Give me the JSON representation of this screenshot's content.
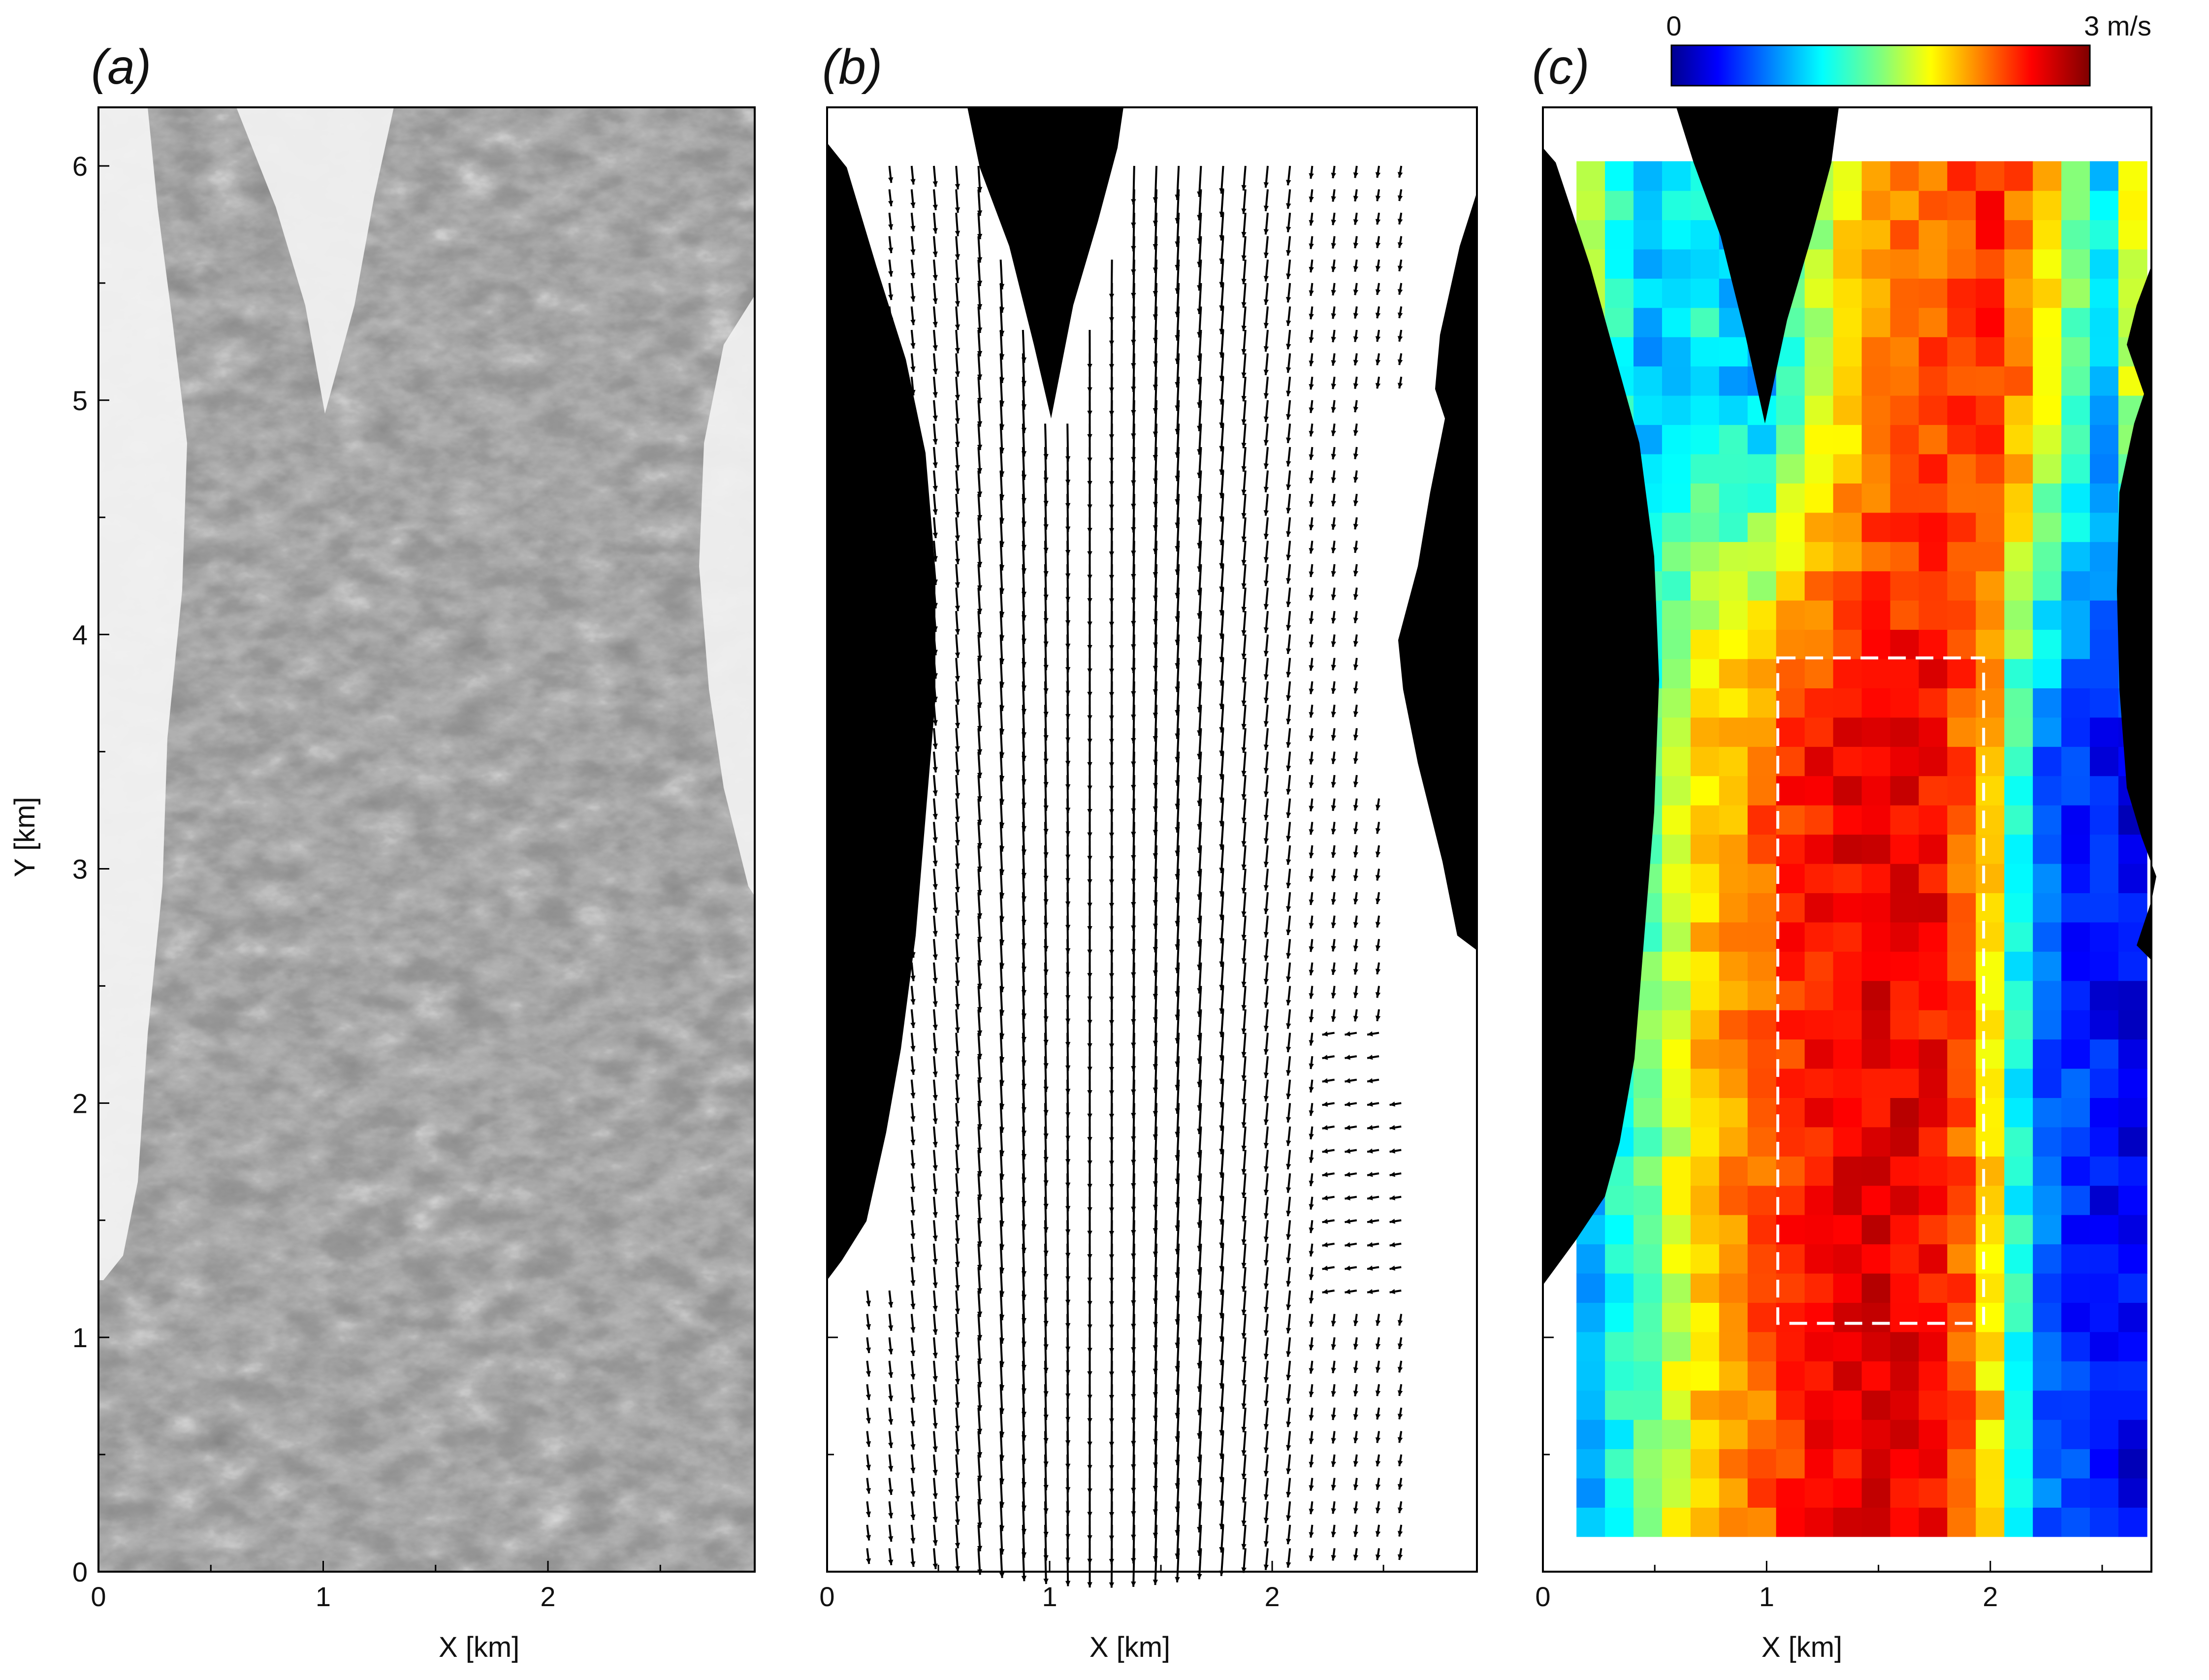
{
  "figure": {
    "panels": [
      {
        "id": "a",
        "label": "(a)",
        "xlabel": "X [km]",
        "ylabel": "Y [km]",
        "type": "image"
      },
      {
        "id": "b",
        "label": "(b)",
        "xlabel": "X [km]",
        "ylabel": "",
        "type": "vector-field"
      },
      {
        "id": "c",
        "label": "(c)",
        "xlabel": "X [km]",
        "ylabel": "",
        "type": "heatmap"
      }
    ],
    "colorbar": {
      "min_label": "0",
      "max_label": "3 m/s",
      "vmin": 0,
      "vmax": 3,
      "colormap": "jet"
    }
  },
  "chart_data": [
    {
      "type": "image",
      "panel": "a",
      "title": "(a)",
      "xlabel": "X [km]",
      "ylabel": "Y [km]",
      "xlim": [
        0,
        2.92
      ],
      "ylim": [
        0,
        6.25
      ],
      "xticks": [
        0,
        1,
        2
      ],
      "yticks": [
        0,
        1,
        2,
        3,
        4,
        5,
        6
      ],
      "image": "grayscale sea-surface image of a tidal channel",
      "colors": {
        "land": "#f2f2f2",
        "water": "#5a5a5a",
        "foam": "#e6e6e6"
      }
    },
    {
      "type": "vector-field",
      "panel": "b",
      "title": "(b)",
      "xlabel": "X [km]",
      "xlim": [
        0,
        2.92
      ],
      "ylim": [
        0,
        6.25
      ],
      "xticks": [
        0,
        1,
        2
      ],
      "yticks": [
        0,
        1,
        2,
        3,
        4,
        5,
        6
      ],
      "flow_direction": "southward",
      "vector_color": "#000000",
      "land_color": "#000000",
      "grid": {
        "x_start": 0.18,
        "dx": 0.1,
        "nx": 25,
        "y_start": 0.1,
        "dy": 0.1,
        "ny": 60
      }
    },
    {
      "type": "heatmap",
      "panel": "c",
      "title": "(c)",
      "xlabel": "X [km]",
      "xlim": [
        0,
        2.72
      ],
      "ylim": [
        0,
        6.25
      ],
      "xticks": [
        0,
        1,
        2
      ],
      "yticks": [
        0,
        1,
        2,
        3,
        4,
        5,
        6
      ],
      "colorbar": {
        "range": [
          0,
          3
        ],
        "unit": "m/s",
        "colormap": "jet"
      },
      "cell_grid": {
        "x_start": 0.15,
        "x_end": 2.7,
        "y_start": 0.15,
        "y_end": 6.02,
        "nx": 20,
        "ny": 47
      },
      "speed_profile_x_km": [
        0.15,
        0.45,
        0.7,
        0.95,
        1.2,
        1.5,
        1.8,
        2.0,
        2.2,
        2.5,
        2.7
      ],
      "speed_profile_south_ms": [
        0.8,
        1.4,
        2.0,
        2.3,
        2.6,
        2.7,
        2.6,
        2.0,
        0.7,
        0.4,
        0.3
      ],
      "speed_profile_north_ms": [
        1.7,
        0.9,
        1.2,
        0.8,
        1.6,
        2.2,
        2.4,
        2.5,
        2.2,
        1.0,
        2.1
      ],
      "dashed_box": {
        "x": [
          1.05,
          1.97
        ],
        "y": [
          1.06,
          3.9
        ],
        "color": "#ffffff"
      },
      "land_color": "#000000"
    }
  ]
}
